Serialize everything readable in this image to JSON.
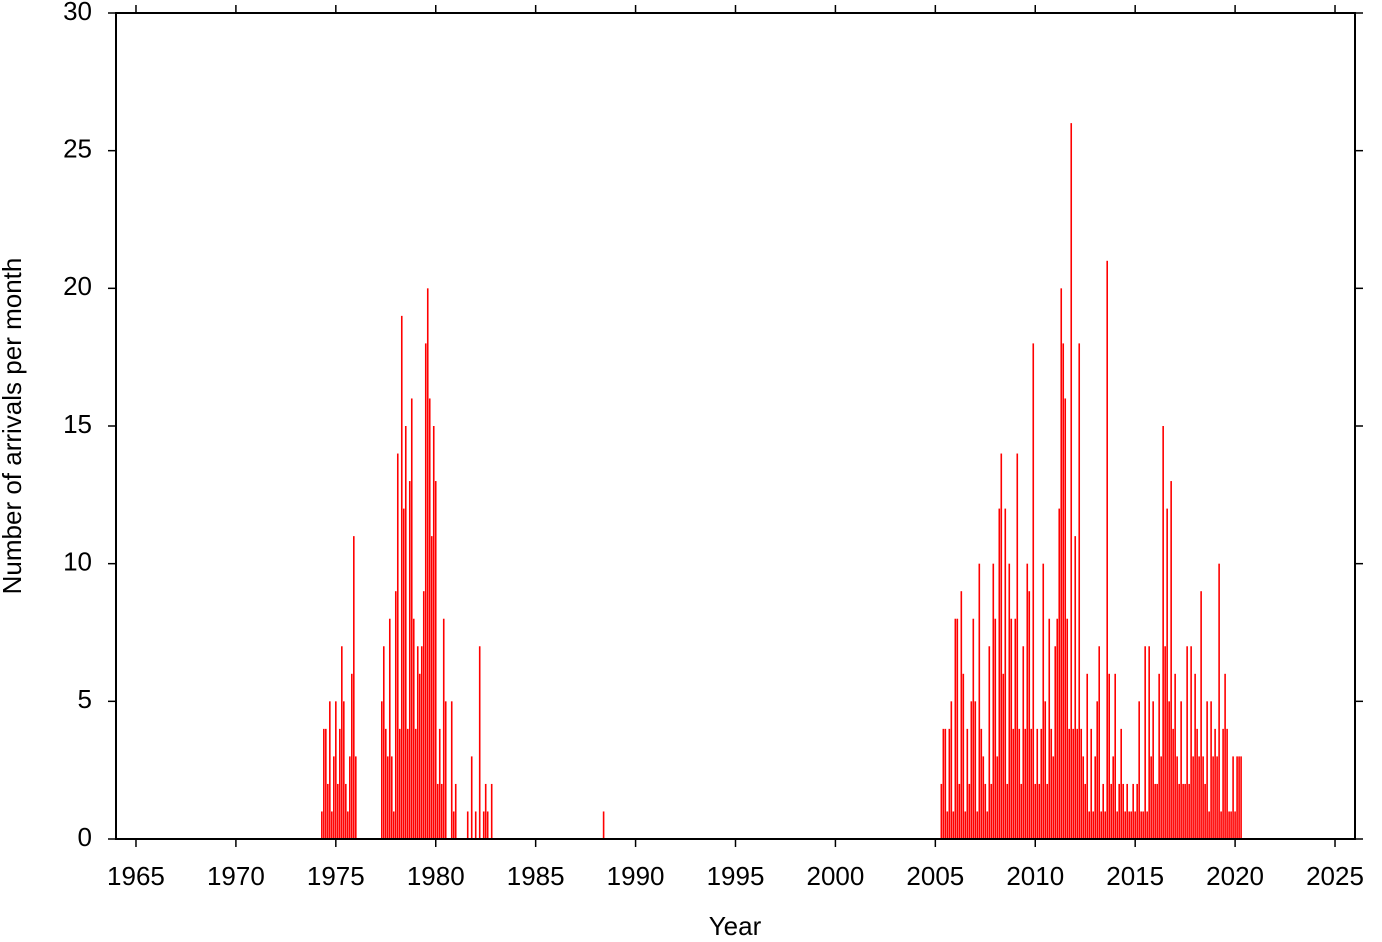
{
  "chart_data": {
    "type": "bar",
    "x_label": "Year",
    "y_label": "Number of arrivals per month",
    "color": "#ff0000",
    "xlim": [
      1964,
      2026
    ],
    "ylim": [
      0,
      30
    ],
    "xticks": [
      1965,
      1970,
      1975,
      1980,
      1985,
      1990,
      1995,
      2000,
      2005,
      2010,
      2015,
      2020,
      2025
    ],
    "yticks": [
      0,
      5,
      10,
      15,
      20,
      25,
      30
    ],
    "x": [
      1974.3,
      1974.4,
      1974.5,
      1974.6,
      1974.7,
      1974.8,
      1974.9,
      1975.0,
      1975.1,
      1975.2,
      1975.3,
      1975.4,
      1975.5,
      1975.6,
      1975.7,
      1975.8,
      1975.9,
      1976.0,
      1977.3,
      1977.4,
      1977.5,
      1977.6,
      1977.7,
      1977.8,
      1977.9,
      1978.0,
      1978.1,
      1978.2,
      1978.3,
      1978.4,
      1978.5,
      1978.6,
      1978.7,
      1978.8,
      1978.9,
      1979.0,
      1979.1,
      1979.2,
      1979.3,
      1979.4,
      1979.5,
      1979.6,
      1979.7,
      1979.8,
      1979.9,
      1980.0,
      1980.1,
      1980.2,
      1980.3,
      1980.4,
      1980.5,
      1980.8,
      1980.9,
      1981.0,
      1981.6,
      1981.8,
      1982.0,
      1982.2,
      1982.4,
      1982.5,
      1982.6,
      1982.8,
      1988.4,
      2005.3,
      2005.4,
      2005.5,
      2005.6,
      2005.7,
      2005.8,
      2005.9,
      2006.0,
      2006.1,
      2006.2,
      2006.3,
      2006.4,
      2006.5,
      2006.6,
      2006.7,
      2006.8,
      2006.9,
      2007.0,
      2007.1,
      2007.2,
      2007.3,
      2007.4,
      2007.5,
      2007.6,
      2007.7,
      2007.8,
      2007.9,
      2008.0,
      2008.1,
      2008.2,
      2008.3,
      2008.4,
      2008.5,
      2008.6,
      2008.7,
      2008.8,
      2008.9,
      2009.0,
      2009.1,
      2009.2,
      2009.3,
      2009.4,
      2009.5,
      2009.6,
      2009.7,
      2009.8,
      2009.9,
      2010.0,
      2010.1,
      2010.2,
      2010.3,
      2010.4,
      2010.5,
      2010.6,
      2010.7,
      2010.8,
      2010.9,
      2011.0,
      2011.1,
      2011.2,
      2011.3,
      2011.4,
      2011.5,
      2011.6,
      2011.7,
      2011.8,
      2011.9,
      2012.0,
      2012.1,
      2012.2,
      2012.3,
      2012.4,
      2012.5,
      2012.6,
      2012.7,
      2012.8,
      2012.9,
      2013.0,
      2013.1,
      2013.2,
      2013.3,
      2013.4,
      2013.5,
      2013.6,
      2013.7,
      2013.8,
      2013.9,
      2014.0,
      2014.1,
      2014.2,
      2014.3,
      2014.4,
      2014.5,
      2014.6,
      2014.7,
      2014.8,
      2014.9,
      2015.0,
      2015.1,
      2015.2,
      2015.3,
      2015.4,
      2015.5,
      2015.6,
      2015.7,
      2015.8,
      2015.9,
      2016.0,
      2016.1,
      2016.2,
      2016.3,
      2016.4,
      2016.5,
      2016.6,
      2016.7,
      2016.8,
      2016.9,
      2017.0,
      2017.1,
      2017.2,
      2017.3,
      2017.4,
      2017.5,
      2017.6,
      2017.7,
      2017.8,
      2017.9,
      2018.0,
      2018.1,
      2018.2,
      2018.3,
      2018.4,
      2018.5,
      2018.6,
      2018.7,
      2018.8,
      2018.9,
      2019.0,
      2019.1,
      2019.2,
      2019.3,
      2019.4,
      2019.5,
      2019.6,
      2019.7,
      2019.8,
      2019.9,
      2020.0,
      2020.1,
      2020.2,
      2020.3
    ],
    "values": [
      1,
      4,
      4,
      2,
      5,
      1,
      3,
      5,
      2,
      4,
      7,
      5,
      2,
      1,
      3,
      6,
      11,
      3,
      5,
      7,
      4,
      3,
      8,
      3,
      1,
      9,
      14,
      4,
      19,
      12,
      15,
      4,
      13,
      16,
      8,
      4,
      7,
      6,
      7,
      9,
      18,
      20,
      16,
      11,
      15,
      13,
      2,
      4,
      2,
      8,
      5,
      5,
      1,
      2,
      1,
      3,
      1,
      7,
      1,
      2,
      1,
      2,
      1,
      2,
      4,
      4,
      1,
      4,
      5,
      1,
      8,
      8,
      2,
      9,
      6,
      1,
      4,
      2,
      5,
      8,
      5,
      1,
      10,
      4,
      3,
      2,
      1,
      7,
      2,
      10,
      8,
      3,
      12,
      14,
      6,
      12,
      2,
      10,
      8,
      4,
      8,
      14,
      4,
      2,
      7,
      4,
      10,
      9,
      4,
      18,
      2,
      4,
      2,
      4,
      10,
      5,
      2,
      8,
      4,
      3,
      7,
      8,
      12,
      20,
      18,
      16,
      8,
      4,
      26,
      4,
      11,
      4,
      18,
      4,
      3,
      2,
      6,
      1,
      4,
      1,
      3,
      5,
      7,
      1,
      2,
      1,
      21,
      6,
      2,
      3,
      6,
      1,
      2,
      4,
      2,
      1,
      2,
      1,
      1,
      2,
      1,
      2,
      5,
      1,
      1,
      7,
      1,
      7,
      3,
      5,
      2,
      2,
      6,
      3,
      15,
      7,
      12,
      5,
      13,
      4,
      6,
      3,
      2,
      5,
      2,
      2,
      7,
      2,
      7,
      3,
      6,
      4,
      3,
      9,
      3,
      2,
      5,
      1,
      5,
      3,
      4,
      3,
      10,
      1,
      4,
      6,
      4,
      1,
      1,
      3,
      1,
      3,
      3,
      3
    ]
  }
}
